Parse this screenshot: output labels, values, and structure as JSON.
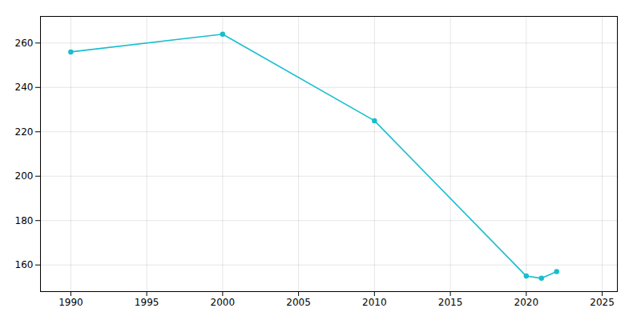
{
  "chart_data": {
    "type": "line",
    "x": [
      1990,
      2000,
      2010,
      2020,
      2021,
      2022
    ],
    "values": [
      256,
      264,
      225,
      155,
      154,
      157
    ],
    "color": "#17BECF",
    "marker": "circle",
    "xlim": [
      1988,
      2026
    ],
    "ylim": [
      148,
      272
    ],
    "xticks": [
      1990,
      1995,
      2000,
      2005,
      2010,
      2015,
      2020,
      2025
    ],
    "yticks": [
      160,
      180,
      200,
      220,
      240,
      260
    ],
    "grid": true
  }
}
